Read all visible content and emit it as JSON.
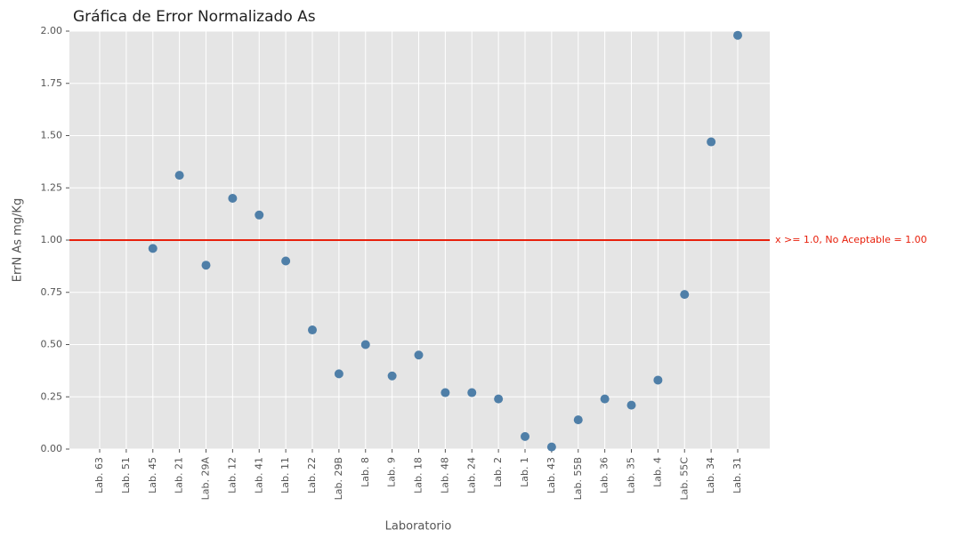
{
  "chart_data": {
    "type": "scatter",
    "title": "Gráfica de Error Normalizado As",
    "x_label": "Laboratorio",
    "y_label": "ErrN As mg/Kg",
    "categories": [
      "Lab. 63",
      "Lab. 51",
      "Lab. 45",
      "Lab. 21",
      "Lab. 29A",
      "Lab. 12",
      "Lab. 41",
      "Lab. 11",
      "Lab. 22",
      "Lab. 29B",
      "Lab. 8",
      "Lab. 9",
      "Lab. 18",
      "Lab. 48",
      "Lab. 24",
      "Lab. 2",
      "Lab. 1",
      "Lab. 43",
      "Lab. 55B",
      "Lab. 36",
      "Lab. 35",
      "Lab. 4",
      "Lab. 55C",
      "Lab. 34",
      "Lab. 31"
    ],
    "values": [
      null,
      null,
      0.96,
      1.31,
      0.88,
      1.2,
      1.12,
      0.9,
      0.57,
      0.36,
      0.5,
      0.35,
      0.45,
      0.27,
      0.27,
      0.24,
      0.06,
      0.01,
      0.14,
      0.24,
      0.21,
      0.33,
      0.74,
      1.47,
      1.98
    ],
    "color": "#4f7fa8",
    "ylim": [
      0,
      2
    ],
    "yticks": [
      {
        "value": 0,
        "label": "0.00"
      },
      {
        "value": 0.25,
        "label": "0.25"
      },
      {
        "value": 0.5,
        "label": "0.50"
      },
      {
        "value": 0.75,
        "label": "0.75"
      },
      {
        "value": 1,
        "label": "1.00"
      },
      {
        "value": 1.25,
        "label": "1.25"
      },
      {
        "value": 1.5,
        "label": "1.50"
      },
      {
        "value": 1.75,
        "label": "1.75"
      },
      {
        "value": 2,
        "label": "2.00"
      }
    ],
    "grid": true,
    "threshold": {
      "value": 1,
      "text": "x >= 1.0, No Aceptable = 1.00",
      "color": "#e8200c"
    }
  }
}
